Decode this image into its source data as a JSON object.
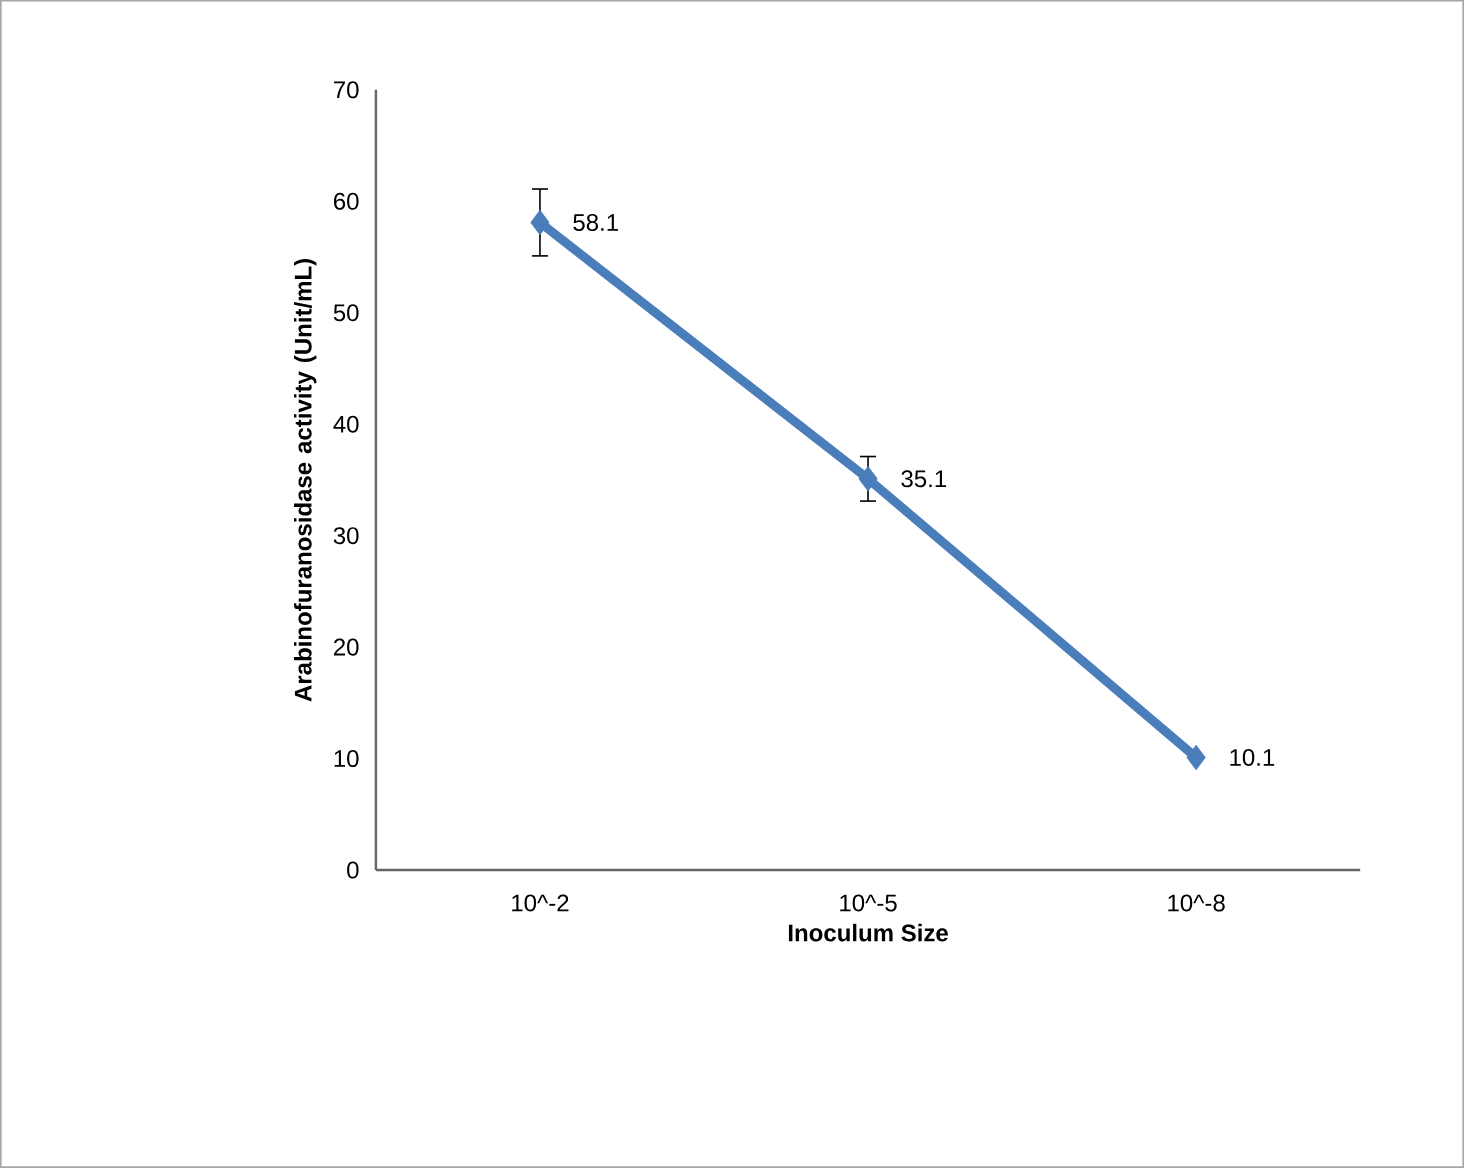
{
  "chart_data": {
    "type": "line",
    "xlabel": "Inoculum Size",
    "ylabel": "Arabinofuranosidase activity (Unit/mL)",
    "categories": [
      "10^-2",
      "10^-5",
      "10^-8"
    ],
    "series": [
      {
        "color": "#4a7ebb",
        "values": [
          58.1,
          35.1,
          10.1
        ],
        "errors": [
          3,
          2,
          null
        ],
        "value_labels": [
          "58.1",
          "35.1",
          "10.1"
        ]
      }
    ],
    "ylim": [
      0,
      70
    ],
    "yticks": [
      0,
      10,
      20,
      30,
      40,
      50,
      60,
      70
    ],
    "grid": false,
    "marker": "diamond",
    "line_style": "solid"
  }
}
